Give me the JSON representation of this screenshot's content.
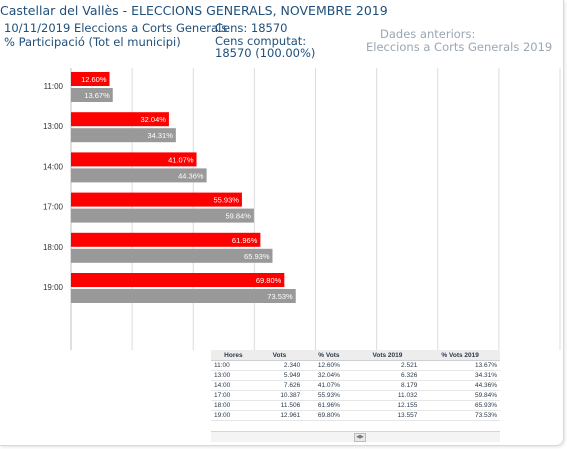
{
  "header": {
    "title": "Castellar del Vallès - ELECCIONS GENERALS, NOVEMBRE 2019",
    "election_label": "10/11/2019 Eleccions a Corts Generals",
    "participation_label": "% Participació (Tot el municipi)",
    "cens_label": "Cens: 18570",
    "cens_computat_label": "Cens computat:",
    "cens_computat_value": "18570 (100.00%)",
    "previous_label": "Dades anteriors:",
    "previous_election": "Eleccions a Corts Generals 2019"
  },
  "chart_data": {
    "type": "bar",
    "orientation": "horizontal",
    "categories": [
      "11:00",
      "13:00",
      "14:00",
      "17:00",
      "18:00",
      "19:00"
    ],
    "series": [
      {
        "values": [
          12.6,
          32.04,
          41.07,
          55.93,
          61.96,
          69.8
        ],
        "labels": [
          "12.60%",
          "32.04%",
          "41.07%",
          "55.93%",
          "61.96%",
          "69.80%"
        ],
        "color": "#ff0000"
      },
      {
        "values": [
          13.67,
          34.31,
          44.36,
          59.84,
          65.93,
          73.53
        ],
        "labels": [
          "13.67%",
          "34.31%",
          "44.36%",
          "59.84%",
          "65.93%",
          "73.53%"
        ],
        "color": "#999999"
      }
    ],
    "xlim": [
      0,
      160
    ],
    "grid": true
  },
  "table": {
    "headers": [
      "Hores",
      "Vots",
      "% Vots",
      "Vots 2019",
      "% Vots 2019"
    ],
    "rows": [
      [
        "11:00",
        "2.340",
        "12.60%",
        "2.521",
        "13.67%"
      ],
      [
        "13:00",
        "5.949",
        "32.04%",
        "6.326",
        "34.31%"
      ],
      [
        "14:00",
        "7.626",
        "41.07%",
        "8.179",
        "44.36%"
      ],
      [
        "17:00",
        "10.387",
        "55.93%",
        "11.032",
        "59.84%"
      ],
      [
        "18:00",
        "11.506",
        "61.96%",
        "12.155",
        "65.93%"
      ],
      [
        "19:00",
        "12.961",
        "69.80%",
        "13.557",
        "73.53%"
      ]
    ]
  }
}
